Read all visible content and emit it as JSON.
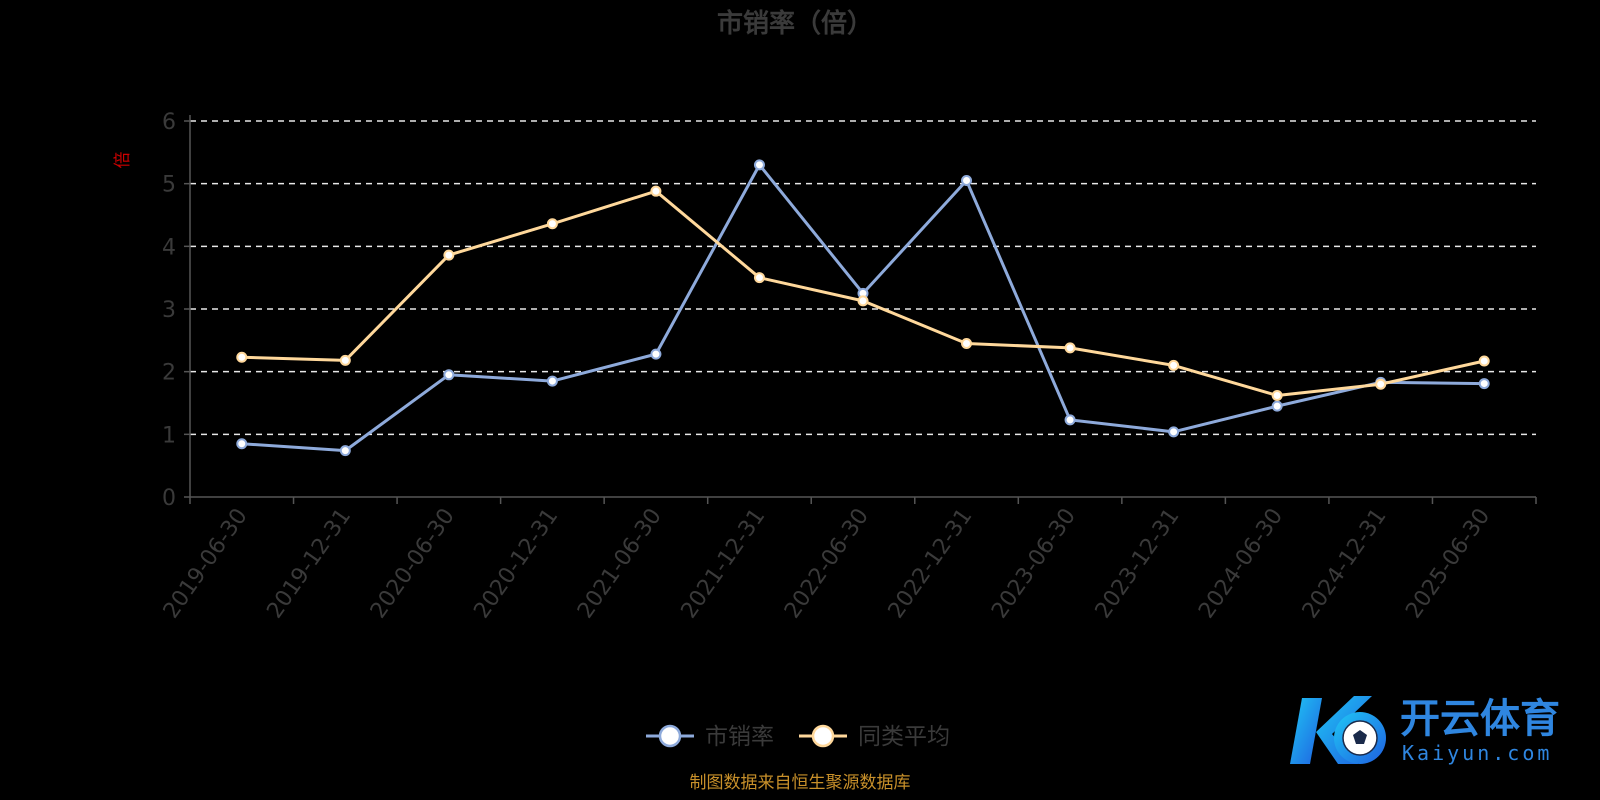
{
  "chart_data": {
    "type": "line",
    "title": "市销率（倍）",
    "ylabel": "倍",
    "ylim": [
      0,
      6
    ],
    "yticks": [
      "0",
      "1",
      "2",
      "3",
      "4",
      "5",
      "6"
    ],
    "grid": true,
    "x": [
      "2019-06-30",
      "2019-12-31",
      "2020-06-30",
      "2020-12-31",
      "2021-06-30",
      "2021-12-31",
      "2022-06-30",
      "2022-12-31",
      "2023-06-30",
      "2023-12-31",
      "2024-06-30",
      "2024-12-31",
      "2025-06-30"
    ],
    "series": [
      {
        "name": "市销率",
        "color": "#8eaadb",
        "values": [
          0.85,
          0.74,
          1.95,
          1.85,
          2.28,
          5.3,
          3.25,
          5.05,
          1.23,
          1.04,
          1.45,
          1.83,
          1.81
        ]
      },
      {
        "name": "同类平均",
        "color": "#ffd89b",
        "values": [
          2.23,
          2.18,
          3.86,
          4.36,
          4.88,
          3.5,
          3.13,
          2.45,
          2.38,
          2.1,
          1.62,
          1.8,
          2.17
        ]
      }
    ],
    "legend_position": "bottom-center"
  },
  "source_note": "制图数据来自恒生聚源数据库",
  "watermark": {
    "text_cn": "开云体育",
    "text_en": "Kaiyun.com"
  }
}
